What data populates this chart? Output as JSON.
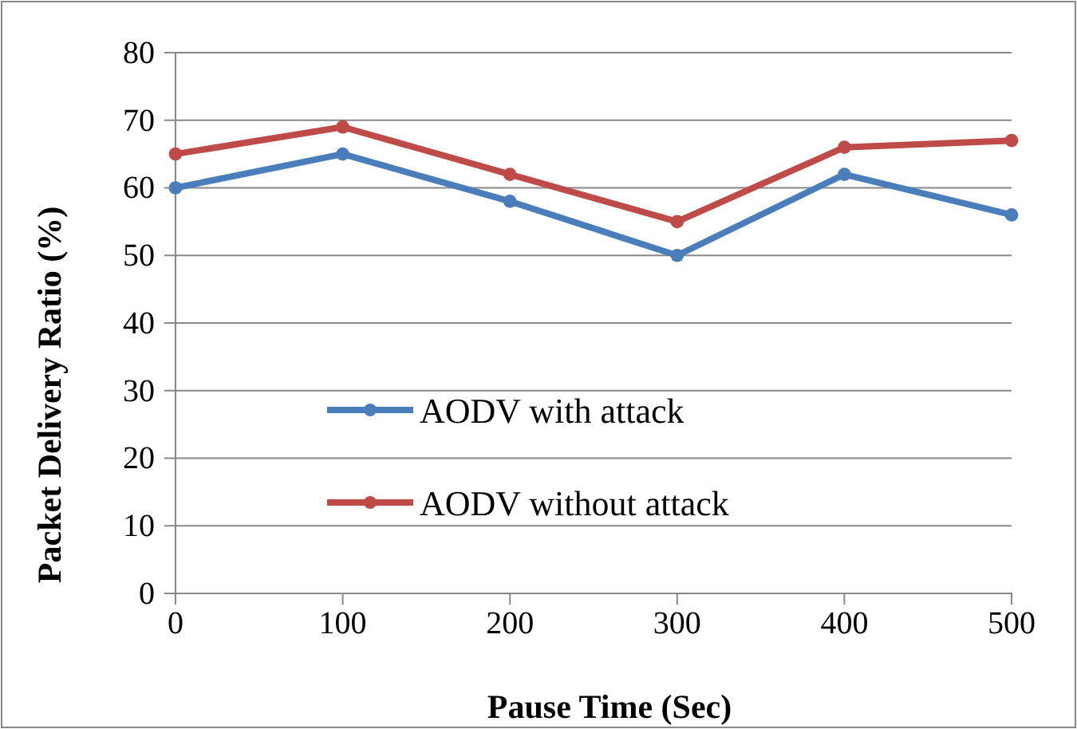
{
  "chart_data": {
    "type": "line",
    "xlabel": "Pause Time (Sec)",
    "ylabel": "Packet Delivery Ratio (%)",
    "categories": [
      "0",
      "100",
      "200",
      "300",
      "400",
      "500"
    ],
    "series": [
      {
        "name": "AODV with attack",
        "color": "#4a7ebb",
        "values": [
          60,
          65,
          58,
          50,
          62,
          56
        ]
      },
      {
        "name": "AODV without attack",
        "color": "#be4b48",
        "values": [
          65,
          69,
          62,
          55,
          66,
          67
        ]
      }
    ],
    "ylim": [
      0,
      80
    ],
    "yticks": [
      0,
      10,
      20,
      30,
      40,
      50,
      60,
      70,
      80
    ],
    "grid": "y",
    "legend": "bottom",
    "marker": "circle",
    "line_style": "solid"
  }
}
